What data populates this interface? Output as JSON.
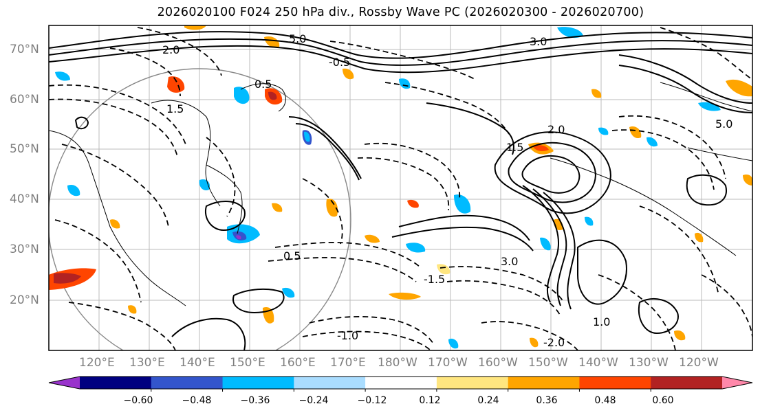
{
  "title": "2026020100 F024 250 hPa div., Rossby Wave PC (2026020300 - 2026020700)",
  "map": {
    "lat_labels": [
      "70°N",
      "60°N",
      "50°N",
      "40°N",
      "30°N",
      "20°N"
    ],
    "lon_labels": [
      "120°E",
      "130°E",
      "140°E",
      "150°E",
      "160°E",
      "170°E",
      "180°W",
      "170°W",
      "160°W",
      "150°W",
      "140°W",
      "130°W",
      "120°W"
    ],
    "contour_labels": [
      "5.0",
      "3.0",
      "2.0",
      "0.5",
      "-0.5",
      "1.5",
      "-1.5",
      "2.0",
      "1.0",
      "-1.0",
      "0.5",
      "3.0",
      "5.0",
      "1.5",
      "-2.0"
    ]
  },
  "colorbar": {
    "colors": [
      "#9933cc",
      "#000080",
      "#3355cc",
      "#00bbff",
      "#aaddff",
      "#ffffff",
      "#ffe680",
      "#ffa500",
      "#ff4500",
      "#b22222",
      "#ff88aa"
    ],
    "ticks": [
      "−0.60",
      "−0.48",
      "−0.36",
      "−0.24",
      "−0.12",
      "0.12",
      "0.24",
      "0.36",
      "0.48",
      "0.60"
    ]
  }
}
